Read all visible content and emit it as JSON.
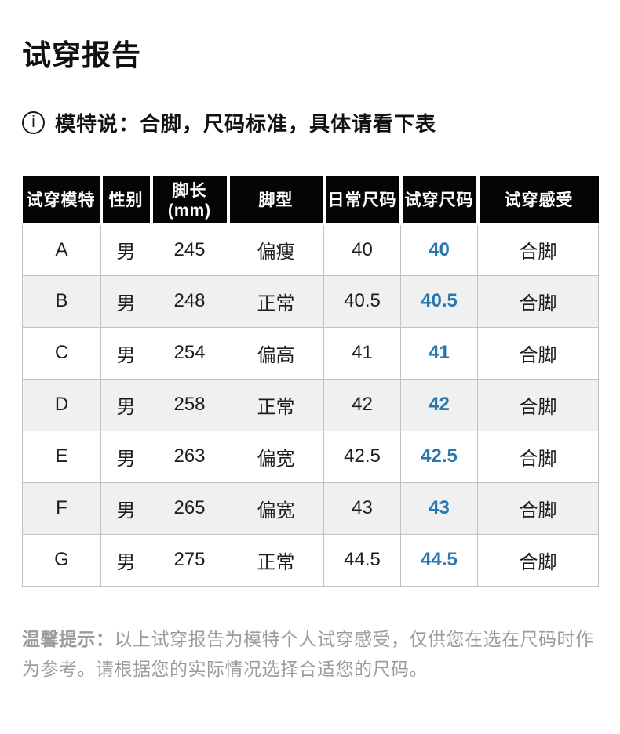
{
  "page": {
    "title": "试穿报告",
    "info_icon_glyph": "i",
    "model_note": "模特说：合脚，尺码标准，具体请看下表"
  },
  "table": {
    "headers": [
      "试穿模特",
      "性别",
      "脚长(mm)",
      "脚型",
      "日常尺码",
      "试穿尺码",
      "试穿感受"
    ],
    "rows": [
      {
        "model": "A",
        "gender": "男",
        "foot_length": "245",
        "foot_type": "偏瘦",
        "daily_size": "40",
        "tried_size": "40",
        "feel": "合脚"
      },
      {
        "model": "B",
        "gender": "男",
        "foot_length": "248",
        "foot_type": "正常",
        "daily_size": "40.5",
        "tried_size": "40.5",
        "feel": "合脚"
      },
      {
        "model": "C",
        "gender": "男",
        "foot_length": "254",
        "foot_type": "偏高",
        "daily_size": "41",
        "tried_size": "41",
        "feel": "合脚"
      },
      {
        "model": "D",
        "gender": "男",
        "foot_length": "258",
        "foot_type": "正常",
        "daily_size": "42",
        "tried_size": "42",
        "feel": "合脚"
      },
      {
        "model": "E",
        "gender": "男",
        "foot_length": "263",
        "foot_type": "偏宽",
        "daily_size": "42.5",
        "tried_size": "42.5",
        "feel": "合脚"
      },
      {
        "model": "F",
        "gender": "男",
        "foot_length": "265",
        "foot_type": "偏宽",
        "daily_size": "43",
        "tried_size": "43",
        "feel": "合脚"
      },
      {
        "model": "G",
        "gender": "男",
        "foot_length": "275",
        "foot_type": "正常",
        "daily_size": "44.5",
        "tried_size": "44.5",
        "feel": "合脚"
      }
    ]
  },
  "footer": {
    "label": "温馨提示：",
    "text": "以上试穿报告为模特个人试穿感受，仅供您在选在尺码时作为参考。请根据您的实际情况选择合适您的尺码。"
  },
  "colors": {
    "accent_blue": "#2678ae",
    "header_bg": "#050505",
    "row_alt_bg": "#f0f0f0",
    "note_gray": "#9c9c9c",
    "border_gray": "#c2c2c2"
  }
}
